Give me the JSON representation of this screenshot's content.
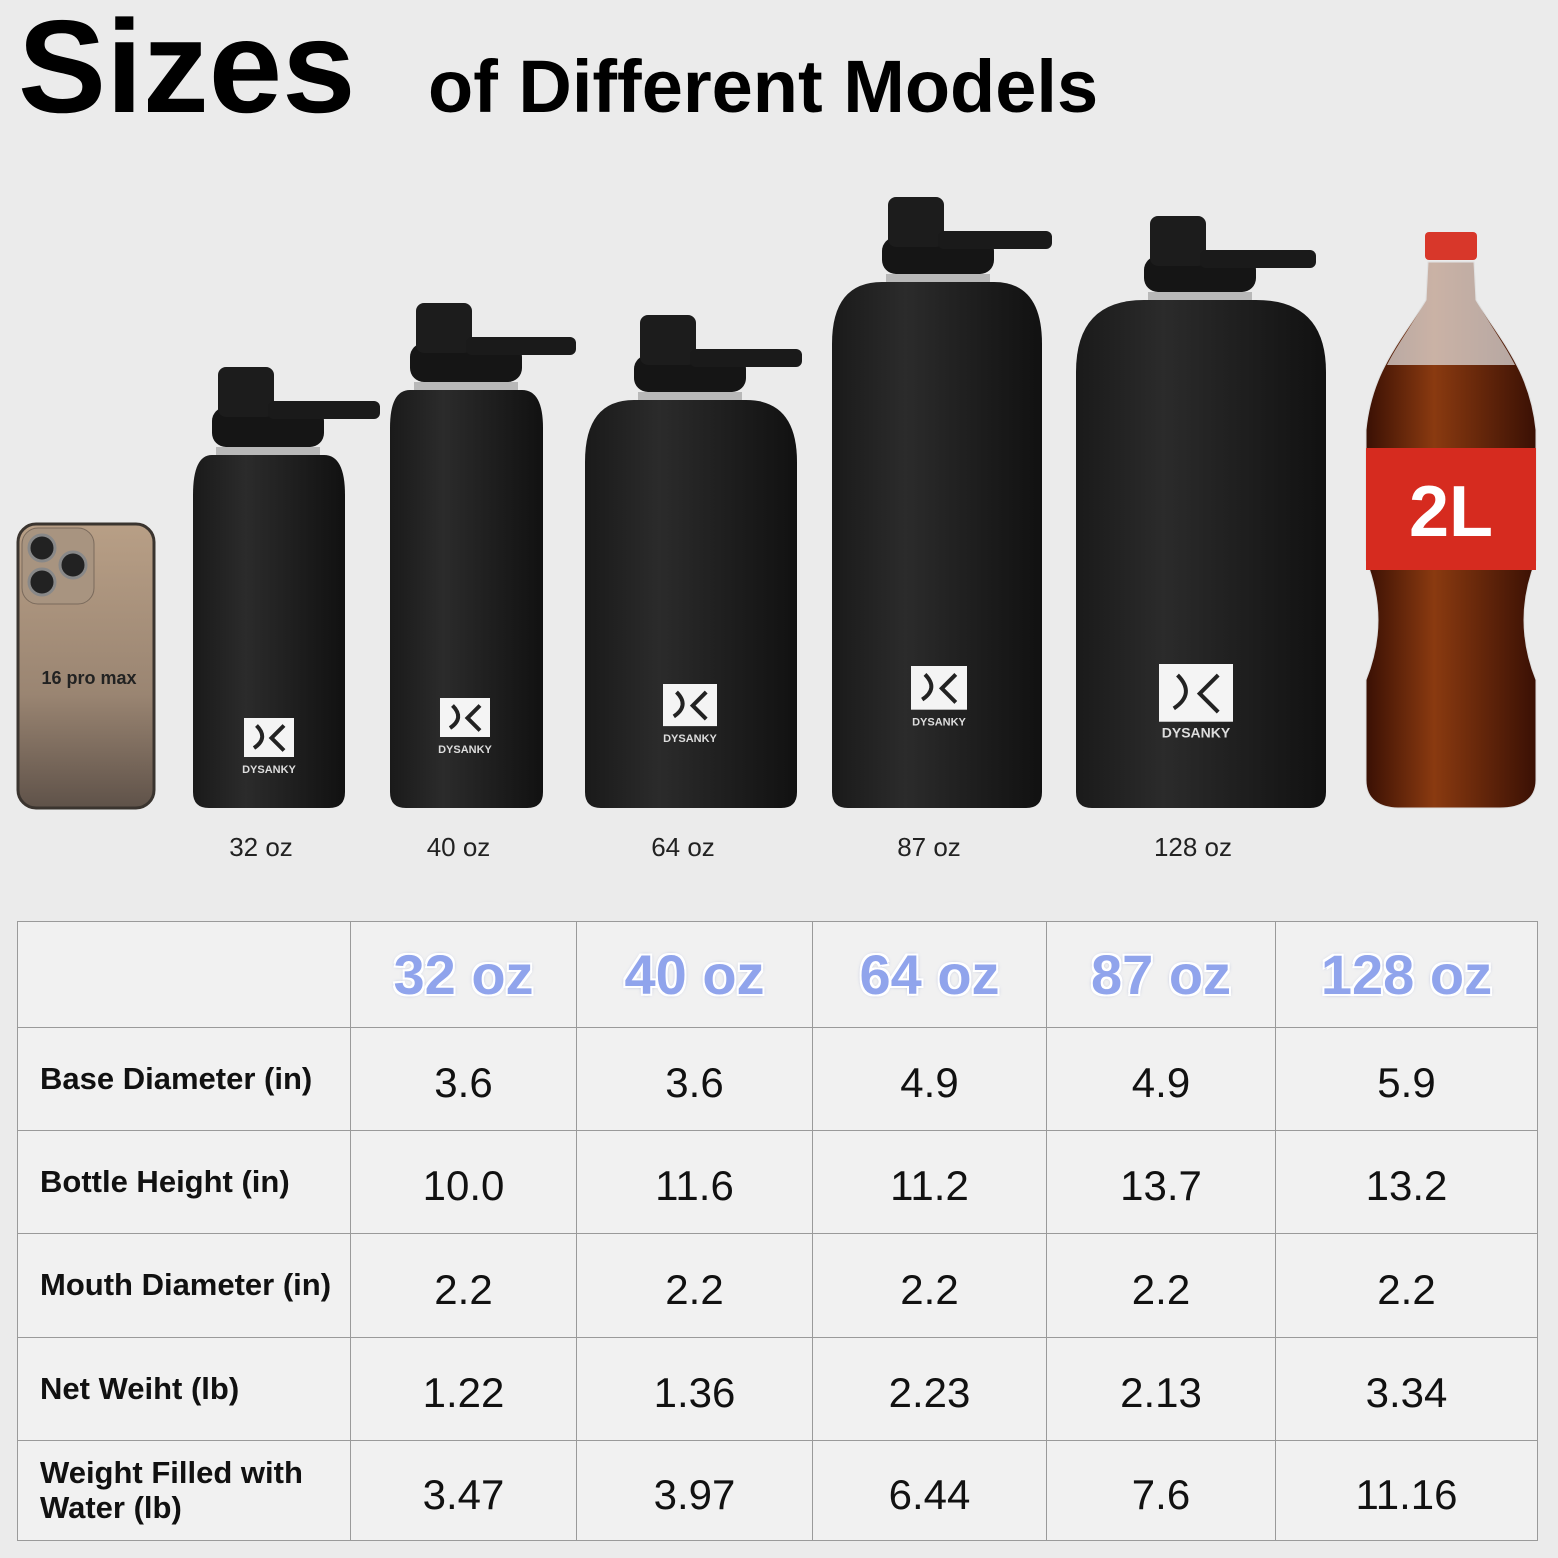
{
  "header": {
    "title_big": "Sizes",
    "title_rest": "of Different Models"
  },
  "phone": {
    "label": "16 pro max"
  },
  "bottles": [
    {
      "brand": "DYSANKY",
      "size": "32 oz"
    },
    {
      "brand": "DYSANKY",
      "size": "40 oz"
    },
    {
      "brand": "DYSANKY",
      "size": "64 oz"
    },
    {
      "brand": "DYSANKY",
      "size": "87 oz"
    },
    {
      "brand": "DYSANKY",
      "size": "128 oz"
    }
  ],
  "soda": {
    "label": "2L"
  },
  "table": {
    "columns": [
      "32 oz",
      "40 oz",
      "64 oz",
      "87 oz",
      "128 oz"
    ],
    "rows": [
      [
        "Base Diameter (in)",
        "3.6",
        "3.6",
        "4.9",
        "4.9",
        "5.9"
      ],
      [
        "Bottle Height (in)",
        "10.0",
        "11.6",
        "11.2",
        "13.7",
        "13.2"
      ],
      [
        "Mouth Diameter (in)",
        "2.2",
        "2.2",
        "2.2",
        "2.2",
        "2.2"
      ],
      [
        "Net Weiht (lb)",
        "1.22",
        "1.36",
        "2.23",
        "2.13",
        "3.34"
      ],
      [
        "Weight Filled with Water (lb)",
        "3.47",
        "3.97",
        "6.44",
        "7.6",
        "11.16"
      ]
    ]
  }
}
